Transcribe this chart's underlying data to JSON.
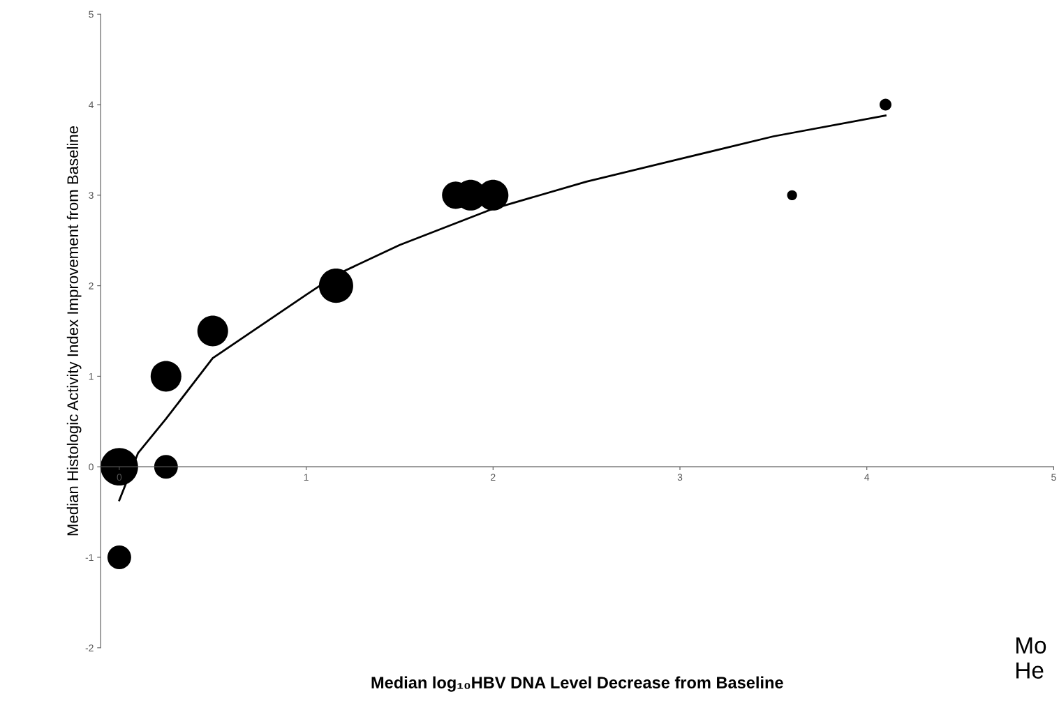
{
  "chart_data": {
    "type": "bubble",
    "xlabel": "Median log₁₀HBV DNA Level Decrease from Baseline",
    "ylabel": "Median Histologic Activity Index Improvement from Baseline",
    "xlim": [
      -0.1,
      5.0
    ],
    "xticks": [
      0,
      1,
      2,
      3,
      4,
      5
    ],
    "ylim": [
      -2,
      5
    ],
    "yticks": [
      -2,
      -1,
      0,
      1,
      2,
      3,
      4,
      5
    ],
    "grid": false,
    "legend": false,
    "annotations": [
      "Mo\nHe"
    ],
    "series": [
      {
        "color": "#000000",
        "x": [
          0,
          0,
          0.25,
          0.25,
          0.5,
          1.16,
          1.8,
          1.88,
          2.0,
          3.6,
          4.1
        ],
        "values": [
          0,
          -1,
          0,
          1,
          1.5,
          2,
          3,
          3,
          3,
          3,
          4
        ],
        "sizes": [
          1,
          0.4,
          0.4,
          0.67,
          0.67,
          0.83,
          0.53,
          0.67,
          0.67,
          0.07,
          0.1
        ]
      },
      {
        "type": "line",
        "color": "#000000",
        "x": [
          0,
          0.1,
          0.25,
          0.5,
          1.0,
          1.16,
          1.5,
          2.0,
          2.5,
          3.0,
          3.5,
          4.1
        ],
        "values": [
          -0.37,
          0.15,
          0.53,
          1.2,
          1.9,
          2.12,
          2.45,
          2.85,
          3.15,
          3.4,
          3.65,
          3.88
        ]
      }
    ]
  }
}
